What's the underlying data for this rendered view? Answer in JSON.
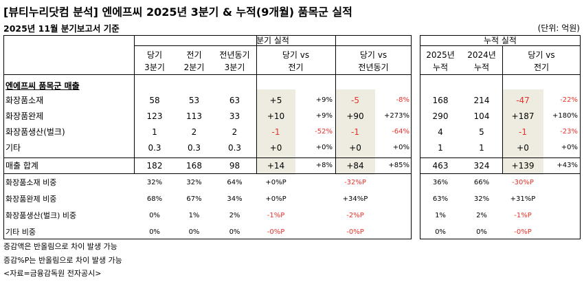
{
  "title": "[뷰티누리닷컴 분석] 엔에프씨 2025년 3분기 & 누적(9개월) 품목군 실적",
  "subtitle": "2025년 11월 분기보고서 기준",
  "unit_label": "(단위: 억원)",
  "headers": {
    "quarter_group": "분기 실적",
    "cumulative_group": "누적 실적",
    "q_cur": [
      "당기",
      "3분기"
    ],
    "q_prev": [
      "전기",
      "2분기"
    ],
    "q_yoy": [
      "전년동기",
      "3분기"
    ],
    "q_vs_prev": [
      "당기 vs",
      "전기"
    ],
    "q_vs_yoy": [
      "당기 vs",
      "전년동기"
    ],
    "cum_cur": [
      "2025년",
      "누적"
    ],
    "cum_prev": [
      "2024년",
      "누적"
    ],
    "cum_vs": [
      "당기 vs",
      "전기"
    ]
  },
  "section_label": "엔에프씨 품목군 매출",
  "rows": [
    {
      "label": "화장품소재",
      "q_cur": "58",
      "q_prev": "53",
      "q_yoy": "63",
      "qp_diff": "+5",
      "qp_pct": "+9%",
      "qy_diff": "-5",
      "qy_pct": "-8%",
      "c_cur": "168",
      "c_prev": "214",
      "c_diff": "-47",
      "c_pct": "-22%"
    },
    {
      "label": "화장품완제",
      "q_cur": "123",
      "q_prev": "113",
      "q_yoy": "33",
      "qp_diff": "+10",
      "qp_pct": "+9%",
      "qy_diff": "+90",
      "qy_pct": "+273%",
      "c_cur": "290",
      "c_prev": "104",
      "c_diff": "+187",
      "c_pct": "+180%"
    },
    {
      "label": "화장품생산(벌크)",
      "q_cur": "1",
      "q_prev": "2",
      "q_yoy": "2",
      "qp_diff": "-1",
      "qp_pct": "-52%",
      "qy_diff": "-1",
      "qy_pct": "-64%",
      "c_cur": "4",
      "c_prev": "5",
      "c_diff": "-1",
      "c_pct": "-23%"
    },
    {
      "label": "기타",
      "q_cur": "0.3",
      "q_prev": "0.3",
      "q_yoy": "0.3",
      "qp_diff": "+0",
      "qp_pct": "+0%",
      "qy_diff": "+0",
      "qy_pct": "+0%",
      "c_cur": "1",
      "c_prev": "1",
      "c_diff": "+0",
      "c_pct": "+0%"
    }
  ],
  "total": {
    "label": "매출 합계",
    "q_cur": "182",
    "q_prev": "168",
    "q_yoy": "98",
    "qp_diff": "+14",
    "qp_pct": "+8%",
    "qy_diff": "+84",
    "qy_pct": "+85%",
    "c_cur": "463",
    "c_prev": "324",
    "c_diff": "+139",
    "c_pct": "+43%"
  },
  "ratios": [
    {
      "label": "화장품소재 비중",
      "q_cur": "32%",
      "q_prev": "32%",
      "q_yoy": "64%",
      "qp": "+0%P",
      "qy": "-32%P",
      "c_cur": "36%",
      "c_prev": "66%",
      "c": "-30%P"
    },
    {
      "label": "화장품완제 비중",
      "q_cur": "68%",
      "q_prev": "67%",
      "q_yoy": "34%",
      "qp": "+0%P",
      "qy": "+34%P",
      "c_cur": "63%",
      "c_prev": "32%",
      "c": "+31%P"
    },
    {
      "label": "화장품생산(벌크) 비중",
      "q_cur": "0%",
      "q_prev": "1%",
      "q_yoy": "2%",
      "qp": "-1%P",
      "qy": "-2%P",
      "c_cur": "1%",
      "c_prev": "2%",
      "c": "-1%P"
    },
    {
      "label": "기타 비중",
      "q_cur": "0%",
      "q_prev": "0%",
      "q_yoy": "0%",
      "qp": "-0%P",
      "qy": "-0%P",
      "c_cur": "0%",
      "c_prev": "0%",
      "c": "-0%P"
    }
  ],
  "notes": [
    "증감액은 반올림으로 차이 발생 가능",
    "증감%P는 반올림으로 차이 발생 가능",
    "<자료=금융감독원 전자공시>"
  ],
  "colors": {
    "negative": "#e8302a",
    "highlight": "#eeece1"
  }
}
